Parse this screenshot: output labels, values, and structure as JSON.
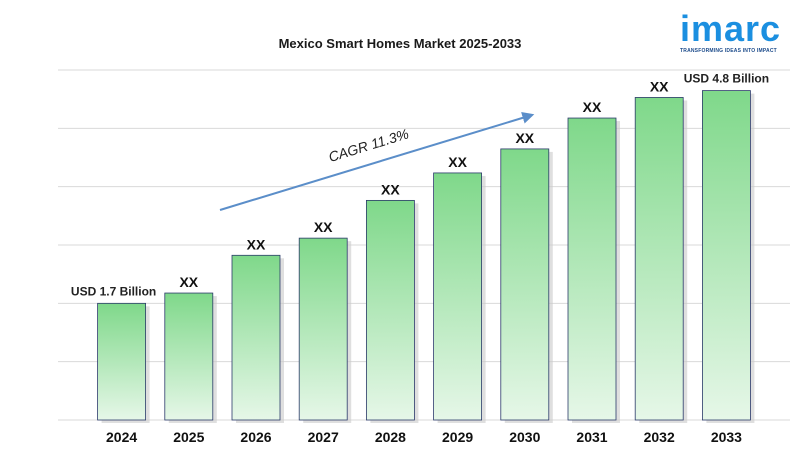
{
  "chart_data": {
    "type": "bar",
    "title": "Mexico Smart Homes Market  2025-2033",
    "categories": [
      "2024",
      "2025",
      "2026",
      "2027",
      "2028",
      "2029",
      "2030",
      "2031",
      "2032",
      "2033"
    ],
    "values": [
      1.7,
      1.85,
      2.4,
      2.65,
      3.2,
      3.6,
      3.95,
      4.4,
      4.7,
      4.8
    ],
    "data_labels": [
      "USD 1.7 Billion",
      "XX",
      "XX",
      "XX",
      "XX",
      "XX",
      "XX",
      "XX",
      "XX",
      "USD  4.8 Billion"
    ],
    "annotation": "CAGR 11.3%",
    "ylim": [
      0,
      5.1
    ],
    "grid": true,
    "colors": {
      "bar_top": "#7fd88a",
      "bar_bottom": "#e6f7e8",
      "bar_edge": "#2b3a6a",
      "arrow": "#5b8ec9",
      "grid": "#d9d9d9"
    }
  },
  "logo": {
    "word": "imarc",
    "tagline": "TRANSFORMING IDEAS INTO IMPACT",
    "color": "#1b8fe0"
  }
}
